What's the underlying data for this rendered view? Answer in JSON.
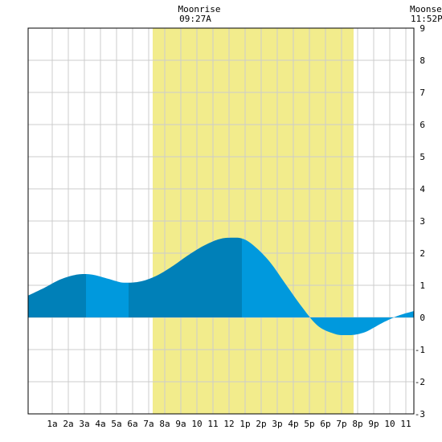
{
  "chart_data": {
    "type": "area",
    "title": "",
    "xlabel": "",
    "ylabel": "",
    "ylim": [
      -3,
      9
    ],
    "yticks": [
      -3,
      -2,
      -1,
      0,
      1,
      2,
      3,
      4,
      5,
      6,
      7,
      8,
      9
    ],
    "x_range_hours": [
      -0.5,
      23.5
    ],
    "x_tick_labels": [
      "1a",
      "2a",
      "3a",
      "4a",
      "5a",
      "6a",
      "7a",
      "8a",
      "9a",
      "10",
      "11",
      "12",
      "1p",
      "2p",
      "3p",
      "4p",
      "5p",
      "6p",
      "7p",
      "8p",
      "9p",
      "10",
      "11"
    ],
    "grid": true,
    "daylight": {
      "start_hour": 7.25,
      "end_hour": 19.75,
      "color": "#f2ec8c"
    },
    "moonrise": {
      "label": "Moonrise",
      "time": "09:27A"
    },
    "moonset": {
      "label": "Moonset",
      "time": "11:52P"
    },
    "series": [
      {
        "values_hours": [
          -0.5,
          0.5,
          1.5,
          2.5,
          3.0,
          3.5,
          4.5,
          5.5,
          6.5,
          7.5,
          8.5,
          9.5,
          10.5,
          11.5,
          12.5,
          13.0,
          13.5,
          14.5,
          15.5,
          16.5,
          17.5,
          18.5,
          19.0,
          19.5,
          20.5,
          21.0,
          21.5,
          22.5,
          23.5
        ],
        "values_ft": [
          0.68,
          0.92,
          1.18,
          1.33,
          1.35,
          1.33,
          1.2,
          1.08,
          1.12,
          1.3,
          1.6,
          1.95,
          2.25,
          2.45,
          2.48,
          2.42,
          2.25,
          1.75,
          1.05,
          0.35,
          -0.25,
          -0.5,
          -0.55,
          -0.55,
          -0.45,
          -0.32,
          -0.18,
          0.05,
          0.2
        ]
      }
    ],
    "shade_bands": {
      "boundaries_hours": [
        -0.5,
        3.1,
        5.75,
        12.8,
        23.5
      ],
      "colors": [
        "#0080b8",
        "#0099dd",
        "#0080b8",
        "#0099dd"
      ]
    },
    "colors": {
      "dark": "#0080b8",
      "light": "#0099dd",
      "grid": "#cccccc"
    }
  }
}
